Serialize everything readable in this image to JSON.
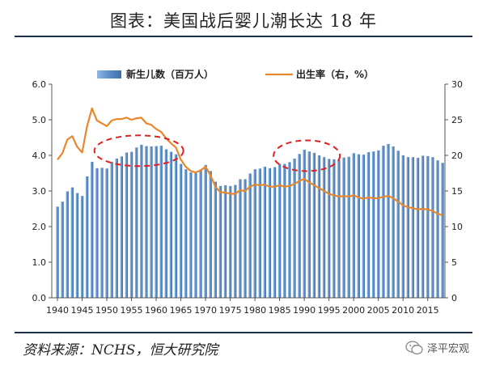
{
  "title": "图表：美国战后婴儿潮长达 18 年",
  "source": "资料来源：NCHS，恒大研究院",
  "brand": "泽平宏观",
  "brand_icon": "wechat-icon",
  "colors": {
    "bars": "#5b8ec9",
    "line": "#e8872b",
    "circle": "#e02020",
    "rule": "#1e2f4a"
  },
  "chart_data": {
    "type": "bar+line",
    "x_start": 1940,
    "x_end": 2018,
    "x_ticks": [
      "1940",
      "1945",
      "1950",
      "1955",
      "1960",
      "1965",
      "1970",
      "1975",
      "1980",
      "1985",
      "1990",
      "1995",
      "2000",
      "2005",
      "2010",
      "2015"
    ],
    "y_left": {
      "min": 0,
      "max": 6,
      "ticks": [
        "0.0",
        "1.0",
        "2.0",
        "3.0",
        "4.0",
        "5.0",
        "6.0"
      ]
    },
    "y_right": {
      "min": 0,
      "max": 30,
      "ticks": [
        "0",
        "5",
        "10",
        "15",
        "20",
        "25",
        "30"
      ]
    },
    "legend_position": "top",
    "series": [
      {
        "name": "新生儿数（百万人）",
        "type": "bar",
        "axis": "left",
        "values": [
          2.56,
          2.7,
          2.99,
          3.1,
          2.94,
          2.86,
          3.41,
          3.82,
          3.64,
          3.65,
          3.63,
          3.82,
          3.91,
          3.97,
          4.08,
          4.1,
          4.22,
          4.3,
          4.26,
          4.25,
          4.26,
          4.27,
          4.17,
          4.1,
          4.03,
          3.76,
          3.61,
          3.52,
          3.5,
          3.6,
          3.73,
          3.56,
          3.26,
          3.14,
          3.16,
          3.14,
          3.17,
          3.33,
          3.33,
          3.49,
          3.61,
          3.63,
          3.68,
          3.64,
          3.67,
          3.76,
          3.76,
          3.81,
          3.91,
          4.04,
          4.16,
          4.11,
          4.07,
          4.0,
          3.95,
          3.9,
          3.89,
          3.88,
          3.94,
          3.96,
          4.06,
          4.03,
          4.02,
          4.09,
          4.11,
          4.14,
          4.27,
          4.32,
          4.25,
          4.13,
          4.0,
          3.95,
          3.95,
          3.93,
          3.99,
          3.98,
          3.95,
          3.86,
          3.79
        ]
      },
      {
        "name": "出生率（右，%）",
        "type": "line",
        "axis": "right",
        "values": [
          19.4,
          20.3,
          22.2,
          22.7,
          21.2,
          20.4,
          24.1,
          26.6,
          24.9,
          24.5,
          24.1,
          24.9,
          25.1,
          25.1,
          25.3,
          25.0,
          25.2,
          25.3,
          24.5,
          24.3,
          23.7,
          23.3,
          22.4,
          21.7,
          21.1,
          19.4,
          18.4,
          17.8,
          17.6,
          17.9,
          18.4,
          17.2,
          15.6,
          14.8,
          14.8,
          14.6,
          14.6,
          15.1,
          15.0,
          15.6,
          15.9,
          15.8,
          15.9,
          15.6,
          15.6,
          15.8,
          15.6,
          15.7,
          16.0,
          16.4,
          16.7,
          16.2,
          15.8,
          15.4,
          15.0,
          14.6,
          14.4,
          14.2,
          14.3,
          14.2,
          14.4,
          14.1,
          13.9,
          14.1,
          14.0,
          14.0,
          14.2,
          14.3,
          14.0,
          13.5,
          13.0,
          12.7,
          12.6,
          12.4,
          12.5,
          12.4,
          12.2,
          11.8,
          11.6
        ]
      }
    ],
    "annotations": [
      {
        "type": "dashed-ellipse",
        "center_year": 1956.5,
        "center_value": 4.13,
        "note": ""
      },
      {
        "type": "dashed-ellipse",
        "center_year": 1990.5,
        "center_value": 3.99,
        "note": ""
      }
    ]
  }
}
